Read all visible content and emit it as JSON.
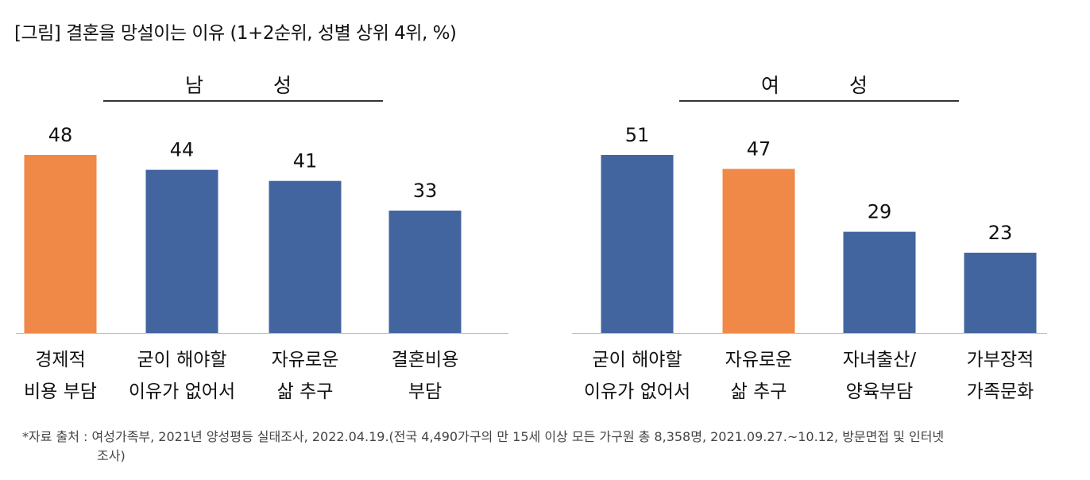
{
  "title": "[그림] 결혼을 망설이는 이유 (1+2순위, 성별 상위 4위, %)",
  "footnote": {
    "line1": "*자료 출처 : 여성가족부, 2021년 양성평등 실태조사, 2022.04.19.(전국 4,490가구의 만 15세 이상 모든 가구원 총 8,358명, 2021.09.27.~10.12, 방문면접 및 인터넷",
    "line2": "조사)"
  },
  "colors": {
    "blue": "#42659F",
    "orange": "#F08847"
  },
  "chart_data": [
    {
      "type": "bar",
      "title": "남 성",
      "categories": [
        [
          "경제적",
          "비용 부담"
        ],
        [
          "굳이 해야할",
          "이유가 없어서"
        ],
        [
          "자유로운",
          "삶 추구"
        ],
        [
          "결혼비용",
          "부담"
        ]
      ],
      "values": [
        48,
        44,
        41,
        33
      ],
      "highlight": [
        true,
        false,
        false,
        false
      ]
    },
    {
      "type": "bar",
      "title": "여 성",
      "categories": [
        [
          "굳이 해야할",
          "이유가 없어서"
        ],
        [
          "자유로운",
          "삶 추구"
        ],
        [
          "자녀출산/",
          "양육부담"
        ],
        [
          "가부장적",
          "가족문화"
        ]
      ],
      "values": [
        51,
        47,
        29,
        23
      ],
      "highlight": [
        false,
        true,
        false,
        false
      ]
    }
  ]
}
